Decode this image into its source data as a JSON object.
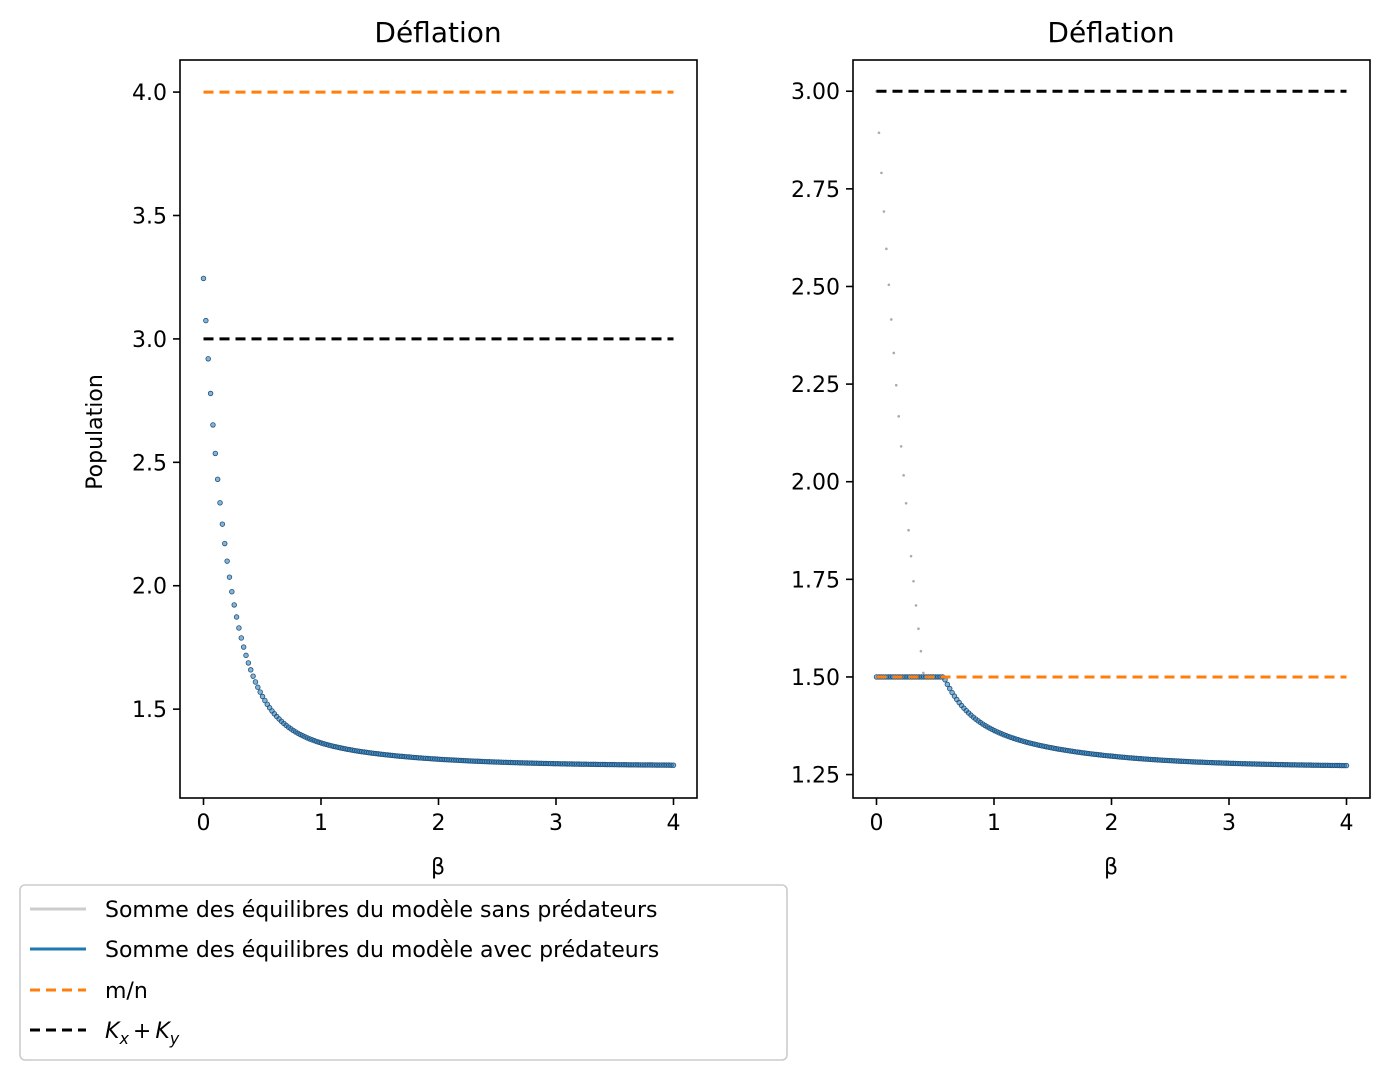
{
  "chart_data": [
    {
      "type": "line",
      "title": "Déflation",
      "xlabel": "β",
      "ylabel": "Population",
      "xlim": [
        -0.2,
        4.2
      ],
      "ylim": [
        1.14,
        4.13
      ],
      "xticks": [
        0,
        1,
        2,
        3,
        4
      ],
      "yticks": [
        1.5,
        2.0,
        2.5,
        3.0,
        3.5,
        4.0
      ],
      "ytick_labels": [
        "1.5",
        "2.0",
        "2.5",
        "3.0",
        "3.5",
        "4.0"
      ],
      "grid": false,
      "series": [
        {
          "name": "Somme des équilibres du modèle avec prédateurs",
          "style": "scatter",
          "color": "#1f77b4",
          "formula": "1.27 + 1.73*exp(-5*beta) + 0.245*exp(-1.1*beta)",
          "x_range": [
            0,
            4
          ],
          "n_points": 200
        },
        {
          "name": "m/n",
          "style": "dashed",
          "color": "#ff7f0e",
          "x": [
            0,
            4
          ],
          "values": [
            4.0,
            4.0
          ]
        },
        {
          "name": "K_x + K_y",
          "style": "dashed",
          "color": "#000000",
          "x": [
            0,
            4
          ],
          "values": [
            3.0,
            3.0
          ]
        }
      ]
    },
    {
      "type": "line",
      "title": "Déflation",
      "xlabel": "β",
      "ylabel": "",
      "xlim": [
        -0.2,
        4.2
      ],
      "ylim": [
        1.19,
        3.08
      ],
      "xticks": [
        0,
        1,
        2,
        3,
        4
      ],
      "yticks": [
        1.25,
        1.5,
        1.75,
        2.0,
        2.25,
        2.5,
        2.75,
        3.0
      ],
      "ytick_labels": [
        "1.25",
        "1.50",
        "1.75",
        "2.00",
        "2.25",
        "2.50",
        "2.75",
        "3.00"
      ],
      "grid": false,
      "series": [
        {
          "name": "Somme des équilibres du modèle sans prédateurs",
          "style": "dotted",
          "color": "#aaaaaa",
          "formula": "3*exp(-1.72*beta)",
          "x_range": [
            0,
            0.42
          ]
        },
        {
          "name": "Somme des équilibres du modèle avec prédateurs",
          "style": "scatter",
          "color": "#1f77b4",
          "formula": "min(1.5, 1.27 + 1.73*exp(-5*beta) + 0.245*exp(-1.1*beta))",
          "x_range": [
            0,
            4
          ],
          "n_points": 200
        },
        {
          "name": "m/n",
          "style": "dashed",
          "color": "#ff7f0e",
          "x": [
            0,
            4
          ],
          "values": [
            1.5,
            1.5
          ]
        },
        {
          "name": "K_x + K_y",
          "style": "dashed",
          "color": "#000000",
          "x": [
            0,
            4
          ],
          "values": [
            3.0,
            3.0
          ]
        }
      ]
    }
  ],
  "legend": {
    "placement": "bottom-left",
    "items": [
      {
        "label": "Somme des équilibres du modèle sans prédateurs",
        "color": "#cccccc",
        "style": "solid"
      },
      {
        "label": "Somme des équilibres du modèle avec prédateurs",
        "color": "#1f77b4",
        "style": "solid"
      },
      {
        "label": "m/n",
        "color": "#ff7f0e",
        "style": "dashed"
      },
      {
        "label": "K",
        "sub1": "x",
        "plus": "+",
        "label2": "K",
        "sub2": "y",
        "color": "#000000",
        "style": "dashed"
      }
    ]
  }
}
